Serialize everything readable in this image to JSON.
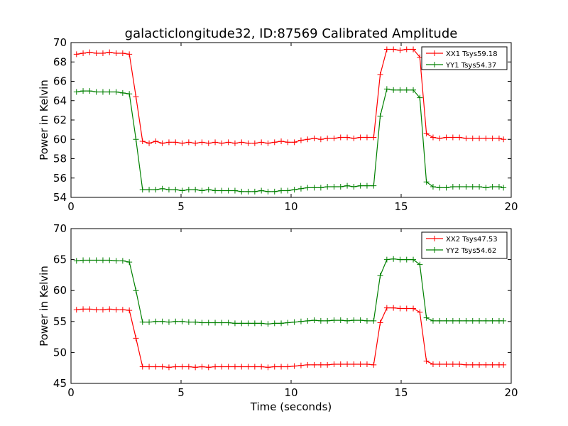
{
  "title": "galacticlongitude32, ID:87569 Calibrated Amplitude",
  "chart_data": [
    {
      "type": "line",
      "title": "galacticlongitude32, ID:87569 Calibrated Amplitude",
      "xlabel": "",
      "ylabel": "Power in Kelvin",
      "xlim": [
        0,
        20
      ],
      "ylim": [
        54,
        70
      ],
      "xticks": [
        "0",
        "5",
        "10",
        "15",
        "20"
      ],
      "yticks": [
        "54",
        "56",
        "58",
        "60",
        "62",
        "64",
        "66",
        "68",
        "70"
      ],
      "legend_position": "top-right",
      "x": [
        0.25,
        0.55,
        0.85,
        1.15,
        1.45,
        1.75,
        2.05,
        2.35,
        2.65,
        2.95,
        3.25,
        3.55,
        3.85,
        4.15,
        4.45,
        4.75,
        5.05,
        5.35,
        5.65,
        5.95,
        6.25,
        6.55,
        6.85,
        7.15,
        7.45,
        7.75,
        8.05,
        8.35,
        8.65,
        8.95,
        9.25,
        9.55,
        9.85,
        10.15,
        10.45,
        10.75,
        11.05,
        11.35,
        11.65,
        11.95,
        12.25,
        12.55,
        12.85,
        13.15,
        13.45,
        13.75,
        14.05,
        14.35,
        14.65,
        14.95,
        15.25,
        15.55,
        15.85,
        16.15,
        16.45,
        16.75,
        17.05,
        17.35,
        17.65,
        17.95,
        18.25,
        18.55,
        18.85,
        19.15,
        19.45,
        19.65
      ],
      "series": [
        {
          "name": "XX1 Tsys59.18",
          "color": "#ff0000",
          "values": [
            68.8,
            68.9,
            69.0,
            68.9,
            68.9,
            69.0,
            68.9,
            68.9,
            68.8,
            64.4,
            59.8,
            59.6,
            59.8,
            59.6,
            59.7,
            59.7,
            59.6,
            59.7,
            59.6,
            59.7,
            59.6,
            59.7,
            59.6,
            59.7,
            59.6,
            59.7,
            59.6,
            59.6,
            59.7,
            59.6,
            59.7,
            59.8,
            59.7,
            59.7,
            59.9,
            60.0,
            60.1,
            60.0,
            60.1,
            60.1,
            60.2,
            60.2,
            60.1,
            60.2,
            60.2,
            60.2,
            66.7,
            69.3,
            69.3,
            69.2,
            69.3,
            69.3,
            68.5,
            60.6,
            60.2,
            60.1,
            60.2,
            60.2,
            60.2,
            60.1,
            60.1,
            60.1,
            60.1,
            60.1,
            60.1,
            60.0
          ],
          "note": ""
        },
        {
          "name": "YY1 Tsys54.37",
          "color": "#008000",
          "values": [
            64.9,
            65.0,
            65.0,
            64.9,
            64.9,
            64.9,
            64.9,
            64.8,
            64.7,
            60.0,
            54.8,
            54.8,
            54.8,
            54.9,
            54.8,
            54.8,
            54.7,
            54.8,
            54.8,
            54.7,
            54.8,
            54.7,
            54.7,
            54.7,
            54.7,
            54.6,
            54.6,
            54.6,
            54.7,
            54.6,
            54.6,
            54.7,
            54.7,
            54.8,
            54.9,
            55.0,
            55.0,
            55.0,
            55.1,
            55.1,
            55.1,
            55.2,
            55.1,
            55.2,
            55.2,
            55.2,
            62.4,
            65.2,
            65.1,
            65.1,
            65.1,
            65.1,
            64.3,
            55.6,
            55.1,
            55.0,
            55.0,
            55.1,
            55.1,
            55.1,
            55.1,
            55.1,
            55.0,
            55.1,
            55.1,
            55.0
          ]
        }
      ]
    },
    {
      "type": "line",
      "title": "",
      "xlabel": "Time (seconds)",
      "ylabel": "Power in Kelvin",
      "xlim": [
        0,
        20
      ],
      "ylim": [
        45,
        70
      ],
      "xticks": [
        "0",
        "5",
        "10",
        "15",
        "20"
      ],
      "yticks": [
        "45",
        "50",
        "55",
        "60",
        "65",
        "70"
      ],
      "legend_position": "top-right",
      "x": [
        0.25,
        0.55,
        0.85,
        1.15,
        1.45,
        1.75,
        2.05,
        2.35,
        2.65,
        2.95,
        3.25,
        3.55,
        3.85,
        4.15,
        4.45,
        4.75,
        5.05,
        5.35,
        5.65,
        5.95,
        6.25,
        6.55,
        6.85,
        7.15,
        7.45,
        7.75,
        8.05,
        8.35,
        8.65,
        8.95,
        9.25,
        9.55,
        9.85,
        10.15,
        10.45,
        10.75,
        11.05,
        11.35,
        11.65,
        11.95,
        12.25,
        12.55,
        12.85,
        13.15,
        13.45,
        13.75,
        14.05,
        14.35,
        14.65,
        14.95,
        15.25,
        15.55,
        15.85,
        16.15,
        16.45,
        16.75,
        17.05,
        17.35,
        17.65,
        17.95,
        18.25,
        18.55,
        18.85,
        19.15,
        19.45,
        19.65
      ],
      "series": [
        {
          "name": "XX2 Tsys47.53",
          "color": "#ff0000",
          "values": [
            56.9,
            57.0,
            57.0,
            56.9,
            56.9,
            57.0,
            56.9,
            56.9,
            56.8,
            52.3,
            47.7,
            47.7,
            47.7,
            47.7,
            47.6,
            47.7,
            47.7,
            47.7,
            47.6,
            47.7,
            47.6,
            47.7,
            47.7,
            47.7,
            47.7,
            47.7,
            47.7,
            47.7,
            47.7,
            47.6,
            47.7,
            47.7,
            47.7,
            47.8,
            47.9,
            48.0,
            48.0,
            48.0,
            48.0,
            48.1,
            48.1,
            48.1,
            48.1,
            48.1,
            48.1,
            48.0,
            54.8,
            57.2,
            57.2,
            57.1,
            57.1,
            57.1,
            56.5,
            48.6,
            48.1,
            48.1,
            48.1,
            48.1,
            48.1,
            48.0,
            48.0,
            48.0,
            48.0,
            48.0,
            48.0,
            48.0
          ]
        },
        {
          "name": "YY2 Tsys54.62",
          "color": "#008000",
          "values": [
            64.8,
            64.9,
            64.9,
            64.9,
            64.9,
            64.9,
            64.8,
            64.8,
            64.6,
            60.0,
            54.9,
            54.9,
            55.0,
            55.0,
            54.9,
            55.0,
            55.0,
            54.9,
            54.9,
            54.8,
            54.8,
            54.8,
            54.8,
            54.8,
            54.7,
            54.7,
            54.7,
            54.7,
            54.7,
            54.6,
            54.7,
            54.7,
            54.8,
            54.9,
            55.0,
            55.1,
            55.2,
            55.1,
            55.1,
            55.2,
            55.2,
            55.1,
            55.2,
            55.2,
            55.1,
            55.1,
            62.4,
            65.0,
            65.1,
            65.0,
            65.0,
            65.0,
            64.2,
            55.6,
            55.1,
            55.1,
            55.1,
            55.1,
            55.1,
            55.1,
            55.1,
            55.1,
            55.1,
            55.1,
            55.1,
            55.1
          ]
        }
      ]
    }
  ]
}
